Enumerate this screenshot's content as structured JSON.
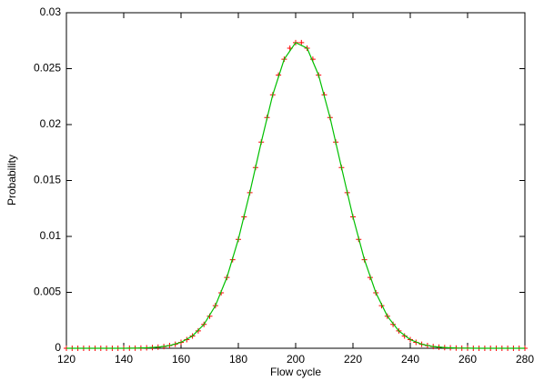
{
  "chart_data": {
    "type": "line",
    "x_label": "Flow cycle",
    "y_label": "Probability",
    "xlim": [
      120,
      280
    ],
    "xticks": [
      120,
      140,
      160,
      180,
      200,
      220,
      240,
      260,
      280
    ],
    "ylim": [
      0,
      0.03
    ],
    "yticks": [
      0,
      0.005,
      0.01,
      0.015,
      0.02,
      0.025,
      0.03
    ],
    "series": [
      {
        "marker": "plus",
        "color": "#ff0000",
        "x": [
          120,
          122,
          124,
          126,
          128,
          130,
          132,
          134,
          136,
          138,
          140,
          142,
          144,
          146,
          148,
          150,
          152,
          154,
          156,
          158,
          160,
          162,
          164,
          166,
          168,
          170,
          172,
          174,
          176,
          178,
          180,
          182,
          184,
          186,
          188,
          190,
          192,
          194,
          196,
          198,
          200,
          202,
          204,
          206,
          208,
          210,
          212,
          214,
          216,
          218,
          220,
          222,
          224,
          226,
          228,
          230,
          232,
          234,
          236,
          238,
          240,
          242,
          244,
          246,
          248,
          250,
          252,
          254,
          256,
          258,
          260,
          262,
          264,
          266,
          268,
          270,
          272,
          274,
          276,
          278,
          280
        ],
        "values": [
          0,
          0,
          0,
          0,
          0,
          0,
          0,
          0,
          0,
          0,
          0,
          1e-05,
          1e-05,
          2e-05,
          4e-05,
          6e-05,
          0.0001,
          0.00015,
          0.00024,
          0.00036,
          0.00053,
          0.00077,
          0.0011,
          0.00155,
          0.00213,
          0.00287,
          0.00381,
          0.00496,
          0.00633,
          0.00792,
          0.00974,
          0.01175,
          0.01391,
          0.01616,
          0.01843,
          0.02063,
          0.02266,
          0.02442,
          0.02584,
          0.02683,
          0.02733,
          0.02733,
          0.02683,
          0.02584,
          0.02442,
          0.02266,
          0.02063,
          0.01843,
          0.01616,
          0.01391,
          0.01175,
          0.00974,
          0.00792,
          0.00633,
          0.00496,
          0.00381,
          0.00287,
          0.00213,
          0.00155,
          0.0011,
          0.00077,
          0.00053,
          0.00036,
          0.00024,
          0.00015,
          0.0001,
          6e-05,
          4e-05,
          2e-05,
          1e-05,
          1e-05,
          0,
          0,
          0,
          0,
          0,
          0,
          0,
          0,
          0,
          0
        ]
      },
      {
        "marker": "line",
        "color": "#00c000",
        "x": [
          120,
          124,
          128,
          132,
          136,
          140,
          144,
          148,
          152,
          156,
          160,
          164,
          168,
          172,
          176,
          180,
          184,
          188,
          192,
          196,
          200,
          204,
          208,
          212,
          216,
          220,
          224,
          228,
          232,
          236,
          240,
          244,
          248,
          252,
          256,
          260,
          264,
          268,
          272,
          276,
          280
        ],
        "values": [
          0,
          0,
          0,
          0,
          0,
          0,
          1e-05,
          4e-05,
          0.0001,
          0.00024,
          0.00053,
          0.0011,
          0.00213,
          0.00381,
          0.00633,
          0.00974,
          0.01391,
          0.01843,
          0.02266,
          0.02584,
          0.02733,
          0.02683,
          0.02442,
          0.02063,
          0.01616,
          0.01175,
          0.00792,
          0.00496,
          0.00287,
          0.00155,
          0.00077,
          0.00036,
          0.00015,
          6e-05,
          2e-05,
          1e-05,
          0,
          0,
          0,
          0,
          0
        ]
      }
    ]
  }
}
